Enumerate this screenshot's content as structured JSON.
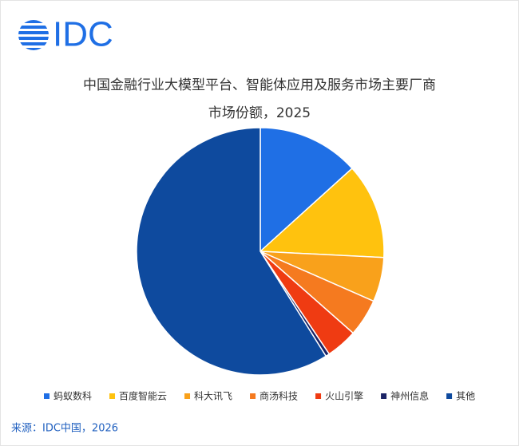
{
  "logo": "IDC",
  "chart_data": {
    "type": "pie",
    "title": [
      "中国金融行业大模型平台、智能体应用及服务市场主要厂商",
      "市场份额，2025"
    ],
    "categories": [
      "蚂蚁数科",
      "百度智能云",
      "科大讯飞",
      "商汤科技",
      "火山引擎",
      "神州信息",
      "其他"
    ],
    "values": [
      13.3,
      12.5,
      5.8,
      4.9,
      4.1,
      0.5,
      58.9
    ],
    "colors": [
      "#1f6fe5",
      "#ffc20e",
      "#f9a11b",
      "#f57a1f",
      "#ef3b12",
      "#1b2466",
      "#0e4a9e"
    ],
    "legend": "bottom"
  },
  "source": "来源：IDC中国，2026"
}
